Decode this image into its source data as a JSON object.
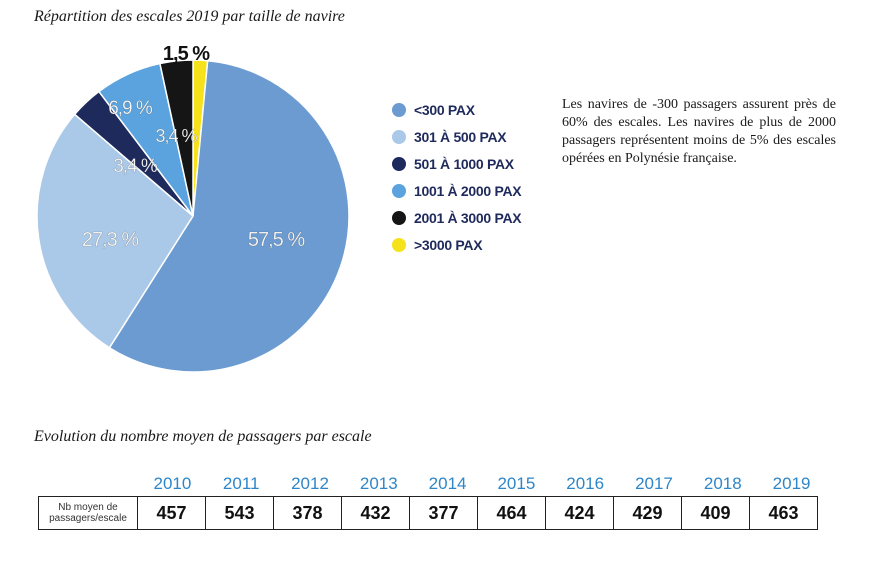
{
  "chart_title": "Répartition des escales 2019 par taille de navire",
  "chart_data": [
    {
      "type": "pie",
      "title": "Répartition des escales 2019 par taille de navire",
      "slices": [
        {
          "name": "<300 PAX",
          "value": 57.5,
          "label": "57,5 %",
          "color": "#6b9bd1"
        },
        {
          "name": "301 À 500 PAX",
          "value": 27.3,
          "label": "27,3 %",
          "color": "#aac8e8"
        },
        {
          "name": "501 À 1000 PAX",
          "value": 3.4,
          "label": "3,4 %",
          "color": "#1f2a5c"
        },
        {
          "name": "1001 À 2000 PAX",
          "value": 6.9,
          "label": "6,9 %",
          "color": "#5aa3de"
        },
        {
          "name": "2001 À 3000 PAX",
          "value": 3.4,
          "label": "3,4 %",
          "color": "#151515"
        },
        {
          "name": ">3000 PAX",
          "value": 1.5,
          "label": "1,5 %",
          "color": "#f6e21a"
        }
      ],
      "legend_position": "right"
    },
    {
      "type": "table",
      "title": "Evolution du nombre moyen de passagers par escale",
      "row_header": "Nb moyen de passagers/escale",
      "columns": [
        "2010",
        "2011",
        "2012",
        "2013",
        "2014",
        "2015",
        "2016",
        "2017",
        "2018",
        "2019"
      ],
      "values": [
        457,
        543,
        378,
        432,
        377,
        464,
        424,
        429,
        409,
        463
      ]
    }
  ],
  "description": "Les navires de -300 passagers assurent près de 60% des escales. Les navires de plus de 2000 passagers représentent moins de 5% des escales opérées en Polynésie française.",
  "table_title": "Evolution du nombre moyen de passagers par escale",
  "table": {
    "row_label_line1": "Nb moyen de",
    "row_label_line2": "passagers/escale",
    "years": [
      "2010",
      "2011",
      "2012",
      "2013",
      "2014",
      "2015",
      "2016",
      "2017",
      "2018",
      "2019"
    ],
    "values": [
      "457",
      "543",
      "378",
      "432",
      "377",
      "464",
      "424",
      "429",
      "409",
      "463"
    ]
  }
}
